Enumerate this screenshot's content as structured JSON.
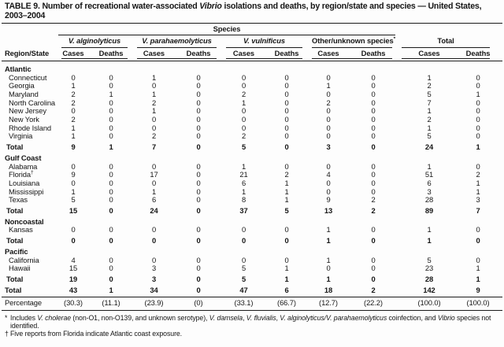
{
  "colors": {
    "ink": "#161616",
    "background": "#fdfdfd"
  },
  "title": {
    "segments": [
      {
        "t": "TABLE 9. Number of recreational water-associated "
      },
      {
        "t": "Vibrio",
        "i": true
      },
      {
        "t": " isolations and deaths, by region/state and species — United States, 2003–2004"
      }
    ]
  },
  "header": {
    "region_state": "Region/State",
    "species_label": "Species",
    "groups": [
      {
        "label": "V. alginolyticus",
        "italic": true
      },
      {
        "label": "V. parahaemolyticus",
        "italic": true
      },
      {
        "label": "V. vulnificus",
        "italic": true
      },
      {
        "label": "Other/unknown species",
        "sup": "*"
      },
      {
        "label": "Total"
      }
    ],
    "sub_columns": [
      "Cases",
      "Deaths"
    ]
  },
  "sections": [
    {
      "name": "Atlantic",
      "rows": [
        {
          "state": "Connecticut",
          "v": [
            0,
            0,
            1,
            0,
            0,
            0,
            0,
            0,
            1,
            0
          ]
        },
        {
          "state": "Georgia",
          "v": [
            1,
            0,
            0,
            0,
            0,
            0,
            1,
            0,
            2,
            0
          ]
        },
        {
          "state": "Maryland",
          "v": [
            2,
            1,
            1,
            0,
            2,
            0,
            0,
            0,
            5,
            1
          ]
        },
        {
          "state": "North Carolina",
          "v": [
            2,
            0,
            2,
            0,
            1,
            0,
            2,
            0,
            7,
            0
          ]
        },
        {
          "state": "New Jersey",
          "v": [
            0,
            0,
            1,
            0,
            0,
            0,
            0,
            0,
            1,
            0
          ]
        },
        {
          "state": "New York",
          "v": [
            2,
            0,
            0,
            0,
            0,
            0,
            0,
            0,
            2,
            0
          ]
        },
        {
          "state": "Rhode Island",
          "v": [
            1,
            0,
            0,
            0,
            0,
            0,
            0,
            0,
            1,
            0
          ]
        },
        {
          "state": "Virginia",
          "v": [
            1,
            0,
            2,
            0,
            2,
            0,
            0,
            0,
            5,
            0
          ]
        }
      ],
      "total": {
        "label": "Total",
        "v": [
          9,
          1,
          7,
          0,
          5,
          0,
          3,
          0,
          24,
          1
        ]
      }
    },
    {
      "name": "Gulf Coast",
      "rows": [
        {
          "state": "Alabama",
          "v": [
            0,
            0,
            0,
            0,
            1,
            0,
            0,
            0,
            1,
            0
          ]
        },
        {
          "state": "Florida",
          "sup": "†",
          "v": [
            9,
            0,
            17,
            0,
            21,
            2,
            4,
            0,
            51,
            2
          ]
        },
        {
          "state": "Louisiana",
          "v": [
            0,
            0,
            0,
            0,
            6,
            1,
            0,
            0,
            6,
            1
          ]
        },
        {
          "state": "Mississippi",
          "v": [
            1,
            0,
            1,
            0,
            1,
            1,
            0,
            0,
            3,
            1
          ]
        },
        {
          "state": "Texas",
          "v": [
            5,
            0,
            6,
            0,
            8,
            1,
            9,
            2,
            28,
            3
          ]
        }
      ],
      "total": {
        "label": "Total",
        "v": [
          15,
          0,
          24,
          0,
          37,
          5,
          13,
          2,
          89,
          7
        ]
      }
    },
    {
      "name": "Noncoastal",
      "rows": [
        {
          "state": "Kansas",
          "v": [
            0,
            0,
            0,
            0,
            0,
            0,
            1,
            0,
            1,
            0
          ]
        }
      ],
      "total": {
        "label": "Total",
        "v": [
          0,
          0,
          0,
          0,
          0,
          0,
          1,
          0,
          1,
          0
        ]
      }
    },
    {
      "name": "Pacific",
      "rows": [
        {
          "state": "California",
          "v": [
            4,
            0,
            0,
            0,
            0,
            0,
            1,
            0,
            5,
            0
          ]
        },
        {
          "state": "Hawaii",
          "v": [
            15,
            0,
            3,
            0,
            5,
            1,
            0,
            0,
            23,
            1
          ]
        }
      ],
      "total": {
        "label": "Total",
        "v": [
          19,
          0,
          3,
          0,
          5,
          1,
          1,
          0,
          28,
          1
        ]
      }
    }
  ],
  "grand_total": {
    "label": "Total",
    "v": [
      43,
      1,
      34,
      0,
      47,
      6,
      18,
      2,
      142,
      9
    ]
  },
  "percentage": {
    "label": "Percentage",
    "v": [
      "(30.3)",
      "(11.1)",
      "(23.9)",
      "(0)",
      "(33.1)",
      "(66.7)",
      "(12.7)",
      "(22.2)",
      "(100.0)",
      "(100.0)"
    ]
  },
  "footnotes": [
    {
      "marker": "*",
      "segments": [
        {
          "t": "Includes "
        },
        {
          "t": "V. cholerae",
          "i": true
        },
        {
          "t": " (non-O1, non-O139, and unknown serotype), "
        },
        {
          "t": "V. damsela",
          "i": true
        },
        {
          "t": ", "
        },
        {
          "t": "V. fluvialis",
          "i": true
        },
        {
          "t": ", "
        },
        {
          "t": "V. alginolyticus/V. parahaemolyticus",
          "i": true
        },
        {
          "t": " coinfection, and "
        },
        {
          "t": "Vibrio",
          "i": true
        },
        {
          "t": " species not identified."
        }
      ]
    },
    {
      "marker": "†",
      "segments": [
        {
          "t": "Five reports from Florida indicate Atlantic coast exposure."
        }
      ]
    }
  ]
}
